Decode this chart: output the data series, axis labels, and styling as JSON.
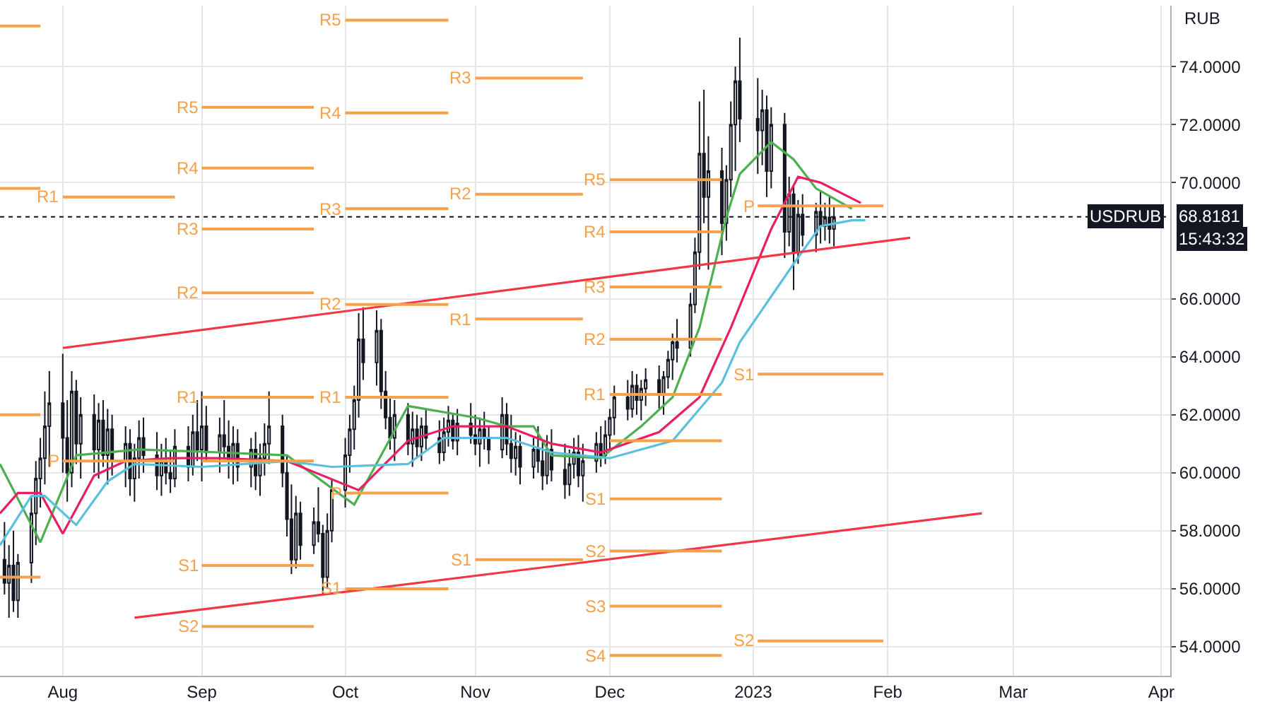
{
  "chart_data": {
    "type": "candlestick",
    "color": "#131722",
    "ylabel": "RUB",
    "x": [
      "2022-07-19",
      "2022-07-20",
      "2022-07-21",
      "2022-07-22",
      "2022-07-25",
      "2022-07-26",
      "2022-07-27",
      "2022-07-28",
      "2022-07-29",
      "2022-08-01",
      "2022-08-02",
      "2022-08-03",
      "2022-08-04",
      "2022-08-05",
      "2022-08-08",
      "2022-08-09",
      "2022-08-10",
      "2022-08-11",
      "2022-08-12",
      "2022-08-15",
      "2022-08-16",
      "2022-08-17",
      "2022-08-18",
      "2022-08-19",
      "2022-08-22",
      "2022-08-23",
      "2022-08-24",
      "2022-08-25",
      "2022-08-26",
      "2022-08-29",
      "2022-08-30",
      "2022-08-31",
      "2022-09-01",
      "2022-09-02",
      "2022-09-05",
      "2022-09-06",
      "2022-09-07",
      "2022-09-08",
      "2022-09-09",
      "2022-09-12",
      "2022-09-13",
      "2022-09-14",
      "2022-09-15",
      "2022-09-16",
      "2022-09-19",
      "2022-09-20",
      "2022-09-21",
      "2022-09-22",
      "2022-09-23",
      "2022-09-26",
      "2022-09-27",
      "2022-09-28",
      "2022-09-29",
      "2022-09-30",
      "2022-10-03",
      "2022-10-04",
      "2022-10-05",
      "2022-10-06",
      "2022-10-07",
      "2022-10-10",
      "2022-10-11",
      "2022-10-12",
      "2022-10-13",
      "2022-10-14",
      "2022-10-17",
      "2022-10-18",
      "2022-10-19",
      "2022-10-20",
      "2022-10-21",
      "2022-10-24",
      "2022-10-25",
      "2022-10-26",
      "2022-10-27",
      "2022-10-28",
      "2022-10-31",
      "2022-11-01",
      "2022-11-02",
      "2022-11-03",
      "2022-11-04",
      "2022-11-07",
      "2022-11-08",
      "2022-11-09",
      "2022-11-10",
      "2022-11-11",
      "2022-11-14",
      "2022-11-15",
      "2022-11-16",
      "2022-11-17",
      "2022-11-18",
      "2022-11-21",
      "2022-11-22",
      "2022-11-23",
      "2022-11-24",
      "2022-11-25",
      "2022-11-28",
      "2022-11-29",
      "2022-11-30",
      "2022-12-01",
      "2022-12-02",
      "2022-12-05",
      "2022-12-06",
      "2022-12-07",
      "2022-12-08",
      "2022-12-09",
      "2022-12-12",
      "2022-12-13",
      "2022-12-14",
      "2022-12-15",
      "2022-12-16",
      "2022-12-19",
      "2022-12-20",
      "2022-12-21",
      "2022-12-22",
      "2022-12-23",
      "2022-12-26",
      "2022-12-27",
      "2022-12-28",
      "2022-12-29",
      "2022-12-30",
      "2023-01-03",
      "2023-01-04",
      "2023-01-05",
      "2023-01-06",
      "2023-01-09",
      "2023-01-10",
      "2023-01-11",
      "2023-01-12",
      "2023-01-13",
      "2023-01-16",
      "2023-01-17",
      "2023-01-18",
      "2023-01-19",
      "2023-01-20"
    ],
    "ohlc": [
      [
        57.0,
        58.3,
        55.8,
        56.2
      ],
      [
        56.2,
        57.5,
        55.0,
        56.8
      ],
      [
        56.8,
        58.0,
        55.2,
        55.6
      ],
      [
        55.6,
        57.2,
        55.0,
        56.9
      ],
      [
        56.9,
        59.2,
        56.2,
        58.6
      ],
      [
        58.6,
        60.4,
        57.5,
        59.8
      ],
      [
        59.8,
        61.2,
        58.8,
        60.5
      ],
      [
        60.5,
        62.8,
        59.6,
        61.6
      ],
      [
        61.6,
        63.5,
        60.2,
        62.4
      ],
      [
        62.4,
        64.1,
        60.0,
        61.2
      ],
      [
        61.2,
        62.5,
        59.0,
        60.0
      ],
      [
        60.0,
        63.5,
        59.5,
        62.8
      ],
      [
        62.8,
        63.2,
        60.3,
        61.0
      ],
      [
        61.0,
        62.6,
        59.8,
        62.0
      ],
      [
        62.0,
        62.7,
        60.0,
        60.8
      ],
      [
        60.8,
        62.4,
        59.8,
        61.8
      ],
      [
        61.8,
        62.5,
        60.2,
        60.6
      ],
      [
        60.6,
        62.2,
        59.6,
        61.5
      ],
      [
        61.5,
        62.0,
        59.9,
        60.4
      ],
      [
        60.4,
        61.6,
        59.5,
        61.0
      ],
      [
        61.0,
        61.5,
        59.2,
        59.8
      ],
      [
        59.8,
        61.0,
        59.0,
        60.5
      ],
      [
        60.5,
        61.8,
        59.8,
        61.2
      ],
      [
        61.2,
        61.9,
        60.0,
        60.6
      ],
      [
        60.6,
        61.4,
        59.4,
        59.9
      ],
      [
        59.9,
        61.0,
        59.2,
        60.4
      ],
      [
        60.4,
        61.2,
        59.6,
        60.0
      ],
      [
        60.0,
        60.8,
        59.3,
        59.8
      ],
      [
        59.8,
        61.5,
        59.5,
        60.9
      ],
      [
        60.9,
        61.6,
        59.7,
        60.2
      ],
      [
        60.2,
        62.0,
        59.9,
        61.4
      ],
      [
        61.4,
        62.5,
        60.4,
        60.8
      ],
      [
        60.8,
        62.8,
        59.7,
        61.6
      ],
      [
        61.6,
        62.3,
        60.4,
        60.7
      ],
      [
        60.7,
        61.9,
        60.0,
        61.3
      ],
      [
        61.3,
        62.5,
        60.5,
        60.9
      ],
      [
        60.9,
        61.8,
        59.8,
        60.4
      ],
      [
        60.4,
        61.6,
        59.6,
        61.0
      ],
      [
        61.0,
        61.5,
        59.7,
        60.2
      ],
      [
        60.2,
        61.2,
        59.5,
        60.8
      ],
      [
        60.8,
        61.4,
        59.4,
        59.9
      ],
      [
        59.9,
        61.0,
        59.2,
        60.5
      ],
      [
        60.5,
        61.7,
        59.9,
        61.0
      ],
      [
        61.0,
        62.8,
        60.3,
        61.6
      ],
      [
        61.6,
        62.0,
        59.5,
        60.0
      ],
      [
        60.0,
        60.6,
        57.8,
        58.4
      ],
      [
        58.4,
        59.6,
        56.5,
        57.0
      ],
      [
        57.0,
        59.2,
        56.7,
        58.6
      ],
      [
        58.6,
        59.0,
        57.0,
        57.5
      ],
      [
        57.5,
        58.8,
        57.2,
        58.3
      ],
      [
        58.3,
        59.5,
        57.6,
        57.9
      ],
      [
        57.9,
        58.2,
        55.8,
        56.4
      ],
      [
        56.4,
        58.6,
        56.0,
        58.0
      ],
      [
        58.0,
        59.8,
        57.6,
        59.4
      ],
      [
        59.4,
        61.2,
        58.8,
        60.6
      ],
      [
        60.6,
        62.0,
        60.0,
        61.5
      ],
      [
        61.5,
        63.0,
        60.8,
        62.5
      ],
      [
        62.5,
        65.5,
        61.9,
        64.6
      ],
      [
        64.6,
        65.7,
        63.2,
        63.8
      ],
      [
        63.8,
        65.6,
        63.0,
        64.9
      ],
      [
        64.9,
        65.3,
        62.2,
        62.8
      ],
      [
        62.8,
        63.5,
        61.5,
        61.9
      ],
      [
        61.9,
        62.6,
        60.8,
        61.2
      ],
      [
        61.2,
        62.5,
        60.4,
        62.0
      ],
      [
        62.0,
        62.4,
        60.6,
        61.0
      ],
      [
        61.0,
        62.1,
        60.2,
        61.5
      ],
      [
        61.5,
        62.0,
        60.5,
        60.9
      ],
      [
        60.9,
        61.9,
        60.4,
        61.6
      ],
      [
        61.6,
        62.2,
        60.8,
        61.2
      ],
      [
        61.2,
        61.8,
        60.3,
        60.7
      ],
      [
        60.7,
        61.9,
        60.4,
        61.4
      ],
      [
        61.4,
        62.3,
        60.9,
        61.8
      ],
      [
        61.8,
        62.0,
        60.8,
        61.1
      ],
      [
        61.1,
        62.2,
        60.6,
        61.7
      ],
      [
        61.7,
        62.4,
        61.0,
        61.3
      ],
      [
        61.3,
        62.0,
        60.6,
        61.0
      ],
      [
        61.0,
        61.9,
        60.2,
        61.5
      ],
      [
        61.5,
        62.1,
        60.8,
        61.2
      ],
      [
        61.2,
        61.6,
        60.3,
        60.8
      ],
      [
        60.8,
        62.6,
        60.5,
        62.0
      ],
      [
        62.0,
        62.4,
        60.6,
        61.0
      ],
      [
        61.0,
        62.0,
        60.0,
        60.5
      ],
      [
        60.5,
        61.4,
        59.9,
        60.9
      ],
      [
        60.9,
        61.3,
        59.6,
        60.2
      ],
      [
        60.2,
        61.2,
        59.8,
        60.8
      ],
      [
        60.8,
        61.6,
        60.0,
        60.4
      ],
      [
        60.4,
        61.1,
        59.4,
        59.9
      ],
      [
        59.9,
        61.3,
        59.6,
        60.8
      ],
      [
        60.8,
        61.5,
        59.7,
        60.1
      ],
      [
        60.1,
        61.0,
        59.1,
        59.6
      ],
      [
        59.6,
        60.8,
        59.2,
        60.3
      ],
      [
        60.3,
        61.2,
        59.8,
        60.7
      ],
      [
        60.7,
        61.3,
        59.5,
        59.9
      ],
      [
        59.9,
        61.0,
        59.0,
        60.4
      ],
      [
        60.4,
        61.4,
        60.0,
        61.0
      ],
      [
        61.0,
        61.6,
        60.2,
        60.6
      ],
      [
        60.6,
        61.8,
        60.3,
        61.3
      ],
      [
        61.3,
        62.2,
        60.8,
        61.9
      ],
      [
        61.9,
        63.0,
        61.3,
        62.6
      ],
      [
        62.6,
        63.2,
        61.8,
        62.2
      ],
      [
        62.2,
        63.5,
        61.9,
        63.0
      ],
      [
        63.0,
        63.4,
        62.0,
        62.5
      ],
      [
        62.5,
        63.2,
        61.8,
        62.9
      ],
      [
        62.9,
        63.6,
        62.3,
        63.2
      ],
      [
        63.2,
        63.7,
        62.2,
        62.7
      ],
      [
        62.7,
        63.5,
        62.0,
        63.3
      ],
      [
        63.3,
        64.2,
        62.9,
        63.9
      ],
      [
        63.9,
        64.8,
        63.2,
        64.5
      ],
      [
        64.5,
        65.3,
        63.8,
        64.3
      ],
      [
        64.3,
        66.2,
        64.0,
        65.8
      ],
      [
        65.8,
        68.1,
        65.5,
        67.6
      ],
      [
        67.6,
        72.8,
        67.0,
        71.0
      ],
      [
        71.0,
        73.2,
        68.6,
        69.5
      ],
      [
        69.5,
        71.6,
        67.0,
        70.4
      ],
      [
        70.4,
        71.2,
        67.5,
        68.6
      ],
      [
        68.6,
        70.6,
        68.0,
        70.1
      ],
      [
        70.1,
        72.8,
        69.5,
        72.0
      ],
      [
        72.0,
        74.0,
        70.4,
        73.5
      ],
      [
        73.5,
        75.0,
        71.4,
        72.2
      ],
      [
        72.2,
        73.6,
        70.3,
        71.8
      ],
      [
        71.8,
        73.2,
        70.6,
        72.5
      ],
      [
        72.5,
        73.0,
        69.5,
        70.4
      ],
      [
        70.4,
        72.6,
        69.8,
        72.0
      ],
      [
        72.0,
        72.4,
        67.4,
        68.3
      ],
      [
        68.3,
        70.2,
        67.8,
        69.6
      ],
      [
        69.6,
        69.9,
        66.3,
        67.6
      ],
      [
        67.6,
        69.4,
        67.2,
        68.9
      ],
      [
        68.9,
        69.6,
        67.8,
        68.2
      ],
      [
        68.2,
        69.3,
        67.6,
        69.0
      ],
      [
        69.0,
        69.7,
        67.9,
        68.5
      ],
      [
        68.5,
        69.3,
        68.0,
        68.8
      ],
      [
        68.8,
        69.5,
        67.9,
        68.4
      ],
      [
        68.4,
        69.2,
        67.8,
        68.8
      ]
    ],
    "series": [
      {
        "type": "line",
        "color": "#4caf50",
        "x": [
          "2022-07-18",
          "2022-07-27",
          "2022-08-04",
          "2022-08-18",
          "2022-09-05",
          "2022-09-20",
          "2022-10-05",
          "2022-10-17",
          "2022-11-01",
          "2022-11-08",
          "2022-11-14",
          "2022-11-18",
          "2022-11-29",
          "2022-12-08",
          "2022-12-15",
          "2022-12-21",
          "2022-12-27",
          "2022-12-30",
          "2023-01-06",
          "2023-01-11",
          "2023-01-16",
          "2023-01-24"
        ],
        "values": [
          60.3,
          57.6,
          60.6,
          60.8,
          60.7,
          60.6,
          58.9,
          62.3,
          61.9,
          61.6,
          61.6,
          60.6,
          60.5,
          61.6,
          62.6,
          65.0,
          68.8,
          70.3,
          71.4,
          70.8,
          69.8,
          69.1
        ]
      },
      {
        "type": "line",
        "color": "#e91e63",
        "x": [
          "2022-07-18",
          "2022-07-22",
          "2022-07-27",
          "2022-08-01",
          "2022-08-08",
          "2022-08-15",
          "2022-08-25",
          "2022-09-05",
          "2022-09-20",
          "2022-10-06",
          "2022-10-17",
          "2022-10-27",
          "2022-11-08",
          "2022-11-18",
          "2022-11-29",
          "2022-12-12",
          "2022-12-21",
          "2022-12-28",
          "2023-01-06",
          "2023-01-12",
          "2023-01-17",
          "2023-01-26"
        ],
        "values": [
          58.6,
          59.3,
          59.3,
          57.9,
          59.9,
          60.4,
          60.5,
          60.5,
          60.4,
          59.4,
          61.1,
          61.6,
          61.6,
          61.0,
          60.7,
          61.4,
          62.6,
          65.0,
          68.4,
          70.2,
          70.0,
          69.3
        ]
      },
      {
        "type": "line",
        "color": "#5bc0de",
        "x": [
          "2022-07-18",
          "2022-07-25",
          "2022-07-28",
          "2022-08-04",
          "2022-08-11",
          "2022-08-17",
          "2022-09-01",
          "2022-09-20",
          "2022-09-30",
          "2022-10-17",
          "2022-10-25",
          "2022-11-08",
          "2022-11-18",
          "2022-12-01",
          "2022-12-15",
          "2022-12-26",
          "2022-12-30",
          "2023-01-11",
          "2023-01-17",
          "2023-01-24",
          "2023-01-27"
        ],
        "values": [
          57.5,
          59.2,
          59.2,
          58.2,
          59.7,
          60.3,
          60.2,
          60.4,
          60.2,
          60.3,
          61.2,
          61.2,
          60.7,
          60.5,
          61.1,
          63.1,
          64.5,
          67.2,
          68.5,
          68.7,
          68.7
        ]
      },
      {
        "type": "line",
        "color": "#f23645",
        "x": [
          "2022-08-01",
          "2023-02-06"
        ],
        "values": [
          64.3,
          68.1
        ]
      },
      {
        "type": "line",
        "color": "#f23645",
        "x": [
          "2022-08-17",
          "2023-02-22"
        ],
        "values": [
          55.0,
          58.6
        ]
      },
      {
        "type": "step",
        "color": "#f5a04a",
        "x": [
          "2022-07-18",
          "2022-07-27"
        ],
        "values": [
          75.4,
          75.4
        ]
      },
      {
        "type": "step",
        "color": "#f5a04a",
        "x": [
          "2022-07-18",
          "2022-07-27"
        ],
        "values": [
          69.8,
          69.8
        ]
      },
      {
        "type": "step",
        "color": "#f5a04a",
        "x": [
          "2022-07-18",
          "2022-07-27"
        ],
        "values": [
          62.0,
          62.0
        ]
      },
      {
        "type": "step",
        "color": "#f5a04a",
        "x": [
          "2022-07-18",
          "2022-07-27"
        ],
        "values": [
          56.4,
          56.4
        ]
      },
      {
        "type": "step",
        "color": "#f5a04a",
        "name": "R1",
        "x": [
          "2022-08-01",
          "2022-08-26"
        ],
        "values": [
          69.5,
          69.5
        ]
      },
      {
        "type": "step",
        "color": "#f5a04a",
        "name": "P",
        "x": [
          "2022-08-01",
          "2022-08-26"
        ],
        "values": [
          60.4,
          60.4
        ]
      },
      {
        "type": "step",
        "color": "#f5a04a",
        "name": "R5",
        "x": [
          "2022-09-01",
          "2022-09-26"
        ],
        "values": [
          72.6,
          72.6
        ]
      },
      {
        "type": "step",
        "color": "#f5a04a",
        "name": "R4",
        "x": [
          "2022-09-01",
          "2022-09-26"
        ],
        "values": [
          70.5,
          70.5
        ]
      },
      {
        "type": "step",
        "color": "#f5a04a",
        "name": "R3",
        "x": [
          "2022-09-01",
          "2022-09-26"
        ],
        "values": [
          68.4,
          68.4
        ]
      },
      {
        "type": "step",
        "color": "#f5a04a",
        "name": "R2",
        "x": [
          "2022-09-01",
          "2022-09-26"
        ],
        "values": [
          66.2,
          66.2
        ]
      },
      {
        "type": "step",
        "color": "#f5a04a",
        "name": "R1",
        "x": [
          "2022-09-01",
          "2022-09-26"
        ],
        "values": [
          62.6,
          62.6
        ]
      },
      {
        "type": "step",
        "color": "#f5a04a",
        "x": [
          "2022-09-01",
          "2022-09-26"
        ],
        "values": [
          60.4,
          60.4
        ]
      },
      {
        "type": "step",
        "color": "#f5a04a",
        "name": "S1",
        "x": [
          "2022-09-01",
          "2022-09-26"
        ],
        "values": [
          56.8,
          56.8
        ]
      },
      {
        "type": "step",
        "color": "#f5a04a",
        "name": "S2",
        "x": [
          "2022-09-01",
          "2022-09-26"
        ],
        "values": [
          54.7,
          54.7
        ]
      },
      {
        "type": "step",
        "color": "#f5a04a",
        "name": "R5",
        "x": [
          "2022-10-03",
          "2022-10-26"
        ],
        "values": [
          75.6,
          75.6
        ]
      },
      {
        "type": "step",
        "color": "#f5a04a",
        "name": "R4",
        "x": [
          "2022-10-03",
          "2022-10-26"
        ],
        "values": [
          72.4,
          72.4
        ]
      },
      {
        "type": "step",
        "color": "#f5a04a",
        "name": "R3",
        "x": [
          "2022-10-03",
          "2022-10-26"
        ],
        "values": [
          69.1,
          69.1
        ]
      },
      {
        "type": "step",
        "color": "#f5a04a",
        "name": "R2",
        "x": [
          "2022-10-03",
          "2022-10-26"
        ],
        "values": [
          65.8,
          65.8
        ]
      },
      {
        "type": "step",
        "color": "#f5a04a",
        "name": "R1",
        "x": [
          "2022-10-03",
          "2022-10-26"
        ],
        "values": [
          62.6,
          62.6
        ]
      },
      {
        "type": "step",
        "color": "#f5a04a",
        "name": "P",
        "x": [
          "2022-10-03",
          "2022-10-26"
        ],
        "values": [
          59.3,
          59.3
        ]
      },
      {
        "type": "step",
        "color": "#f5a04a",
        "name": "S1",
        "x": [
          "2022-10-03",
          "2022-10-26"
        ],
        "values": [
          56.0,
          56.0
        ]
      },
      {
        "type": "step",
        "color": "#f5a04a",
        "name": "R3",
        "x": [
          "2022-11-01",
          "2022-11-25"
        ],
        "values": [
          73.6,
          73.6
        ]
      },
      {
        "type": "step",
        "color": "#f5a04a",
        "name": "R2",
        "x": [
          "2022-11-01",
          "2022-11-25"
        ],
        "values": [
          69.6,
          69.6
        ]
      },
      {
        "type": "step",
        "color": "#f5a04a",
        "name": "R1",
        "x": [
          "2022-11-01",
          "2022-11-25"
        ],
        "values": [
          65.3,
          65.3
        ]
      },
      {
        "type": "step",
        "color": "#f5a04a",
        "name": "S1",
        "x": [
          "2022-11-01",
          "2022-11-25"
        ],
        "values": [
          57.0,
          57.0
        ]
      },
      {
        "type": "step",
        "color": "#f5a04a",
        "name": "R5",
        "x": [
          "2022-12-01",
          "2022-12-26"
        ],
        "values": [
          70.1,
          70.1
        ]
      },
      {
        "type": "step",
        "color": "#f5a04a",
        "name": "R4",
        "x": [
          "2022-12-01",
          "2022-12-26"
        ],
        "values": [
          68.3,
          68.3
        ]
      },
      {
        "type": "step",
        "color": "#f5a04a",
        "name": "R3",
        "x": [
          "2022-12-01",
          "2022-12-26"
        ],
        "values": [
          66.4,
          66.4
        ]
      },
      {
        "type": "step",
        "color": "#f5a04a",
        "name": "R2",
        "x": [
          "2022-12-01",
          "2022-12-26"
        ],
        "values": [
          64.6,
          64.6
        ]
      },
      {
        "type": "step",
        "color": "#f5a04a",
        "name": "R1",
        "x": [
          "2022-12-01",
          "2022-12-26"
        ],
        "values": [
          62.7,
          62.7
        ]
      },
      {
        "type": "step",
        "color": "#f5a04a",
        "x": [
          "2022-12-01",
          "2022-12-26"
        ],
        "values": [
          61.1,
          61.1
        ]
      },
      {
        "type": "step",
        "color": "#f5a04a",
        "name": "S1",
        "x": [
          "2022-12-01",
          "2022-12-26"
        ],
        "values": [
          59.1,
          59.1
        ]
      },
      {
        "type": "step",
        "color": "#f5a04a",
        "name": "S2",
        "x": [
          "2022-12-01",
          "2022-12-26"
        ],
        "values": [
          57.3,
          57.3
        ]
      },
      {
        "type": "step",
        "color": "#f5a04a",
        "name": "S3",
        "x": [
          "2022-12-01",
          "2022-12-26"
        ],
        "values": [
          55.4,
          55.4
        ]
      },
      {
        "type": "step",
        "color": "#f5a04a",
        "name": "S4",
        "x": [
          "2022-12-01",
          "2022-12-26"
        ],
        "values": [
          53.7,
          53.7
        ]
      },
      {
        "type": "step",
        "color": "#f5a04a",
        "name": "P",
        "x": [
          "2023-01-03",
          "2023-01-31"
        ],
        "values": [
          69.2,
          69.2
        ]
      },
      {
        "type": "step",
        "color": "#f5a04a",
        "name": "S1",
        "x": [
          "2023-01-03",
          "2023-01-31"
        ],
        "values": [
          63.4,
          63.4
        ]
      },
      {
        "type": "step",
        "color": "#f5a04a",
        "name": "S2",
        "x": [
          "2023-01-03",
          "2023-01-31"
        ],
        "values": [
          54.2,
          54.2
        ]
      }
    ],
    "ref_lines": [
      {
        "axis": "y",
        "value": 68.8181,
        "label": "USDRUB",
        "line_style": "dotted",
        "color": "#131722"
      }
    ],
    "annotations": [
      "68.8181",
      "15:43:32"
    ],
    "xlim": [
      "2022-07-18",
      "2023-04-05"
    ],
    "xticks": [
      {
        "value": "2022-08-01",
        "label": "Aug"
      },
      {
        "value": "2022-09-01",
        "label": "Sep"
      },
      {
        "value": "2022-10-03",
        "label": "Oct"
      },
      {
        "value": "2022-11-01",
        "label": "Nov"
      },
      {
        "value": "2022-12-01",
        "label": "Dec"
      },
      {
        "value": "2023-01-02",
        "label": "2023"
      },
      {
        "value": "2023-02-01",
        "label": "Feb"
      },
      {
        "value": "2023-03-01",
        "label": "Mar"
      },
      {
        "value": "2023-04-03",
        "label": "Apr"
      }
    ],
    "ylim": [
      53.0,
      76.1
    ],
    "yticks": [
      {
        "value": 54,
        "label": "54.0000"
      },
      {
        "value": 56,
        "label": "56.0000"
      },
      {
        "value": 58,
        "label": "58.0000"
      },
      {
        "value": 60,
        "label": "60.0000"
      },
      {
        "value": 62,
        "label": "62.0000"
      },
      {
        "value": 64,
        "label": "64.0000"
      },
      {
        "value": 66,
        "label": "66.0000"
      },
      {
        "value": 70,
        "label": "70.0000"
      },
      {
        "value": 72,
        "label": "72.0000"
      },
      {
        "value": 74,
        "label": "74.0000"
      }
    ],
    "grid": true
  }
}
